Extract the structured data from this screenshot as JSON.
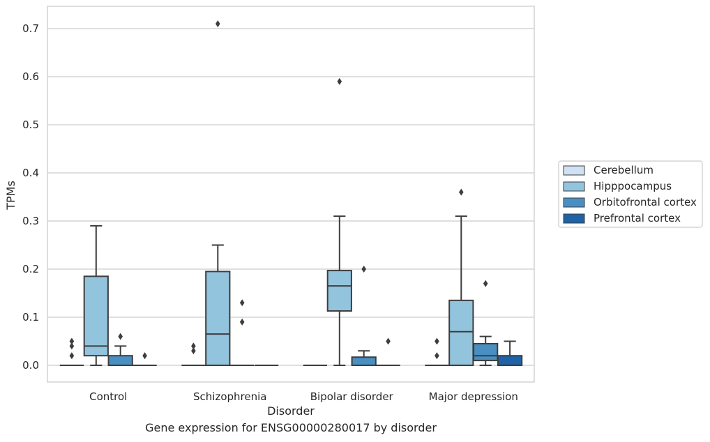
{
  "caption": "Gene expression for ENSG00000280017 by disorder",
  "chart_data": {
    "type": "boxplot",
    "xlabel": "Disorder",
    "ylabel": "TPMs",
    "ylim": [
      -0.035,
      0.745
    ],
    "yticks": [
      0.0,
      0.1,
      0.2,
      0.3,
      0.4,
      0.5,
      0.6,
      0.7
    ],
    "ytick_labels": [
      "0.0",
      "0.1",
      "0.2",
      "0.3",
      "0.4",
      "0.5",
      "0.6",
      "0.7"
    ],
    "grid": "horizontal",
    "legend_position": "right",
    "categories": [
      "Control",
      "Schizophrenia",
      "Bipolar disorder",
      "Major depression"
    ],
    "series": [
      {
        "name": "Cerebellum",
        "color": "#cfe1f2",
        "boxes": [
          {
            "q1": 0,
            "median": 0,
            "q3": 0,
            "whislo": 0,
            "whishi": 0,
            "fliers": [
              0.02,
              0.04,
              0.05
            ]
          },
          {
            "q1": 0,
            "median": 0,
            "q3": 0,
            "whislo": 0,
            "whishi": 0,
            "fliers": [
              0.03,
              0.04
            ]
          },
          {
            "q1": 0,
            "median": 0,
            "q3": 0,
            "whislo": 0,
            "whishi": 0,
            "fliers": []
          },
          {
            "q1": 0,
            "median": 0,
            "q3": 0,
            "whislo": 0,
            "whishi": 0,
            "fliers": [
              0.02,
              0.05
            ]
          }
        ]
      },
      {
        "name": "Hipppocampus",
        "color": "#93c4de",
        "boxes": [
          {
            "q1": 0.02,
            "median": 0.04,
            "q3": 0.185,
            "whislo": 0,
            "whishi": 0.29,
            "fliers": []
          },
          {
            "q1": 0,
            "median": 0.065,
            "q3": 0.195,
            "whislo": 0,
            "whishi": 0.25,
            "fliers": [
              0.71
            ]
          },
          {
            "q1": 0.113,
            "median": 0.165,
            "q3": 0.197,
            "whislo": 0,
            "whishi": 0.31,
            "fliers": [
              0.59
            ]
          },
          {
            "q1": 0,
            "median": 0.07,
            "q3": 0.135,
            "whislo": 0,
            "whishi": 0.31,
            "fliers": [
              0.36
            ]
          }
        ]
      },
      {
        "name": "Orbitofrontal cortex",
        "color": "#4a8fc1",
        "boxes": [
          {
            "q1": 0,
            "median": 0,
            "q3": 0.02,
            "whislo": 0,
            "whishi": 0.04,
            "fliers": [
              0.06
            ]
          },
          {
            "q1": 0,
            "median": 0,
            "q3": 0,
            "whislo": 0,
            "whishi": 0,
            "fliers": [
              0.09,
              0.13
            ]
          },
          {
            "q1": 0,
            "median": 0,
            "q3": 0.017,
            "whislo": 0,
            "whishi": 0.03,
            "fliers": [
              0.2
            ]
          },
          {
            "q1": 0.01,
            "median": 0.02,
            "q3": 0.045,
            "whislo": 0,
            "whishi": 0.06,
            "fliers": [
              0.17
            ]
          }
        ]
      },
      {
        "name": "Prefrontal cortex",
        "color": "#1f62a5",
        "boxes": [
          {
            "q1": 0,
            "median": 0,
            "q3": 0,
            "whislo": 0,
            "whishi": 0,
            "fliers": [
              0.02
            ]
          },
          {
            "q1": 0,
            "median": 0,
            "q3": 0,
            "whislo": 0,
            "whishi": 0,
            "fliers": []
          },
          {
            "q1": 0,
            "median": 0,
            "q3": 0,
            "whislo": 0,
            "whishi": 0,
            "fliers": [
              0.05
            ]
          },
          {
            "q1": 0,
            "median": 0,
            "q3": 0.02,
            "whislo": 0,
            "whishi": 0.05,
            "fliers": []
          }
        ]
      }
    ]
  }
}
